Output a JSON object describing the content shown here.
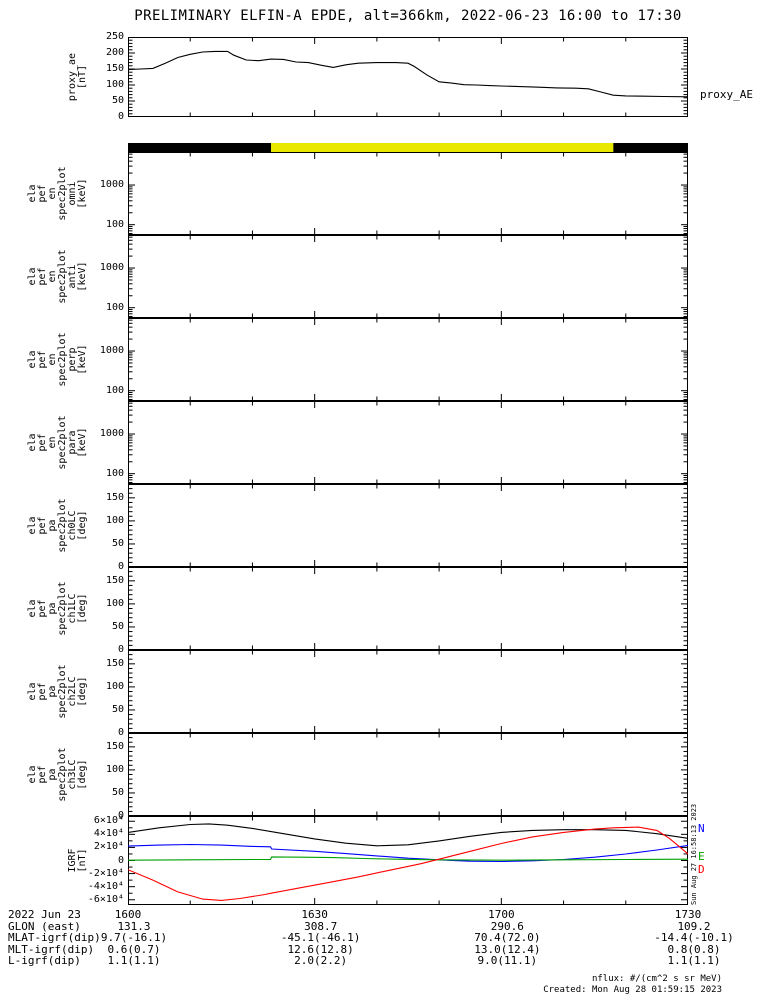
{
  "title": "PRELIMINARY ELFIN-A EPDE, alt=366km, 2022-06-23 16:00 to 17:30",
  "right_labels": {
    "proxy": "proxy_AE",
    "igrf": [
      {
        "label": "N",
        "color": "#0000ff"
      },
      {
        "label": "E",
        "color": "#00a000"
      },
      {
        "label": "D",
        "color": "#ff0000"
      }
    ]
  },
  "vertical_note": "Sun Aug 27 16:58:13 2023",
  "footer": {
    "nflux": "nflux: #/(cm^2 s sr MeV)",
    "created": "Created: Mon Aug 28 01:59:15 2023"
  },
  "xaxis": {
    "range_minutes": [
      0,
      90
    ],
    "major_minutes": [
      0,
      30,
      60,
      90
    ],
    "minor_minutes": [
      10,
      20,
      40,
      50,
      70,
      80
    ],
    "tick_labels": [
      "1600",
      "1630",
      "1700",
      "1730"
    ]
  },
  "panels": [
    {
      "id": "proxy_ae",
      "ylabel_lines": [
        "proxy_ae",
        "[nT]"
      ],
      "yscale": "linear",
      "yrange": [
        0,
        250
      ],
      "yticks": [
        0,
        50,
        100,
        150,
        200,
        250
      ],
      "ytick_labels": [
        "0",
        "50",
        "100",
        "150",
        "200",
        "250"
      ],
      "minor_step": 10
    },
    {
      "id": "en_spec_omni",
      "ylabel_lines": [
        "ela",
        "pef",
        "en",
        "spec2plot",
        "omni",
        "[keV]"
      ],
      "yscale": "log",
      "yrange": [
        55,
        6800
      ],
      "yticks": [
        100,
        1000
      ],
      "ytick_labels": [
        "100",
        "1000"
      ],
      "yticks_minor": [
        60,
        70,
        80,
        90,
        200,
        300,
        400,
        500,
        600,
        700,
        800,
        900,
        2000,
        3000,
        4000,
        5000,
        6000
      ]
    },
    {
      "id": "en_spec_anti",
      "ylabel_lines": [
        "ela",
        "pef",
        "en",
        "spec2plot",
        "anti",
        "[keV]"
      ],
      "yscale": "log",
      "yrange": [
        55,
        6800
      ],
      "yticks": [
        100,
        1000
      ],
      "ytick_labels": [
        "100",
        "1000"
      ],
      "yticks_minor": [
        60,
        70,
        80,
        90,
        200,
        300,
        400,
        500,
        600,
        700,
        800,
        900,
        2000,
        3000,
        4000,
        5000,
        6000
      ]
    },
    {
      "id": "en_spec_perp",
      "ylabel_lines": [
        "ela",
        "pef",
        "en",
        "spec2plot",
        "perp",
        "[keV]"
      ],
      "yscale": "log",
      "yrange": [
        55,
        6800
      ],
      "yticks": [
        100,
        1000
      ],
      "ytick_labels": [
        "100",
        "1000"
      ],
      "yticks_minor": [
        60,
        70,
        80,
        90,
        200,
        300,
        400,
        500,
        600,
        700,
        800,
        900,
        2000,
        3000,
        4000,
        5000,
        6000
      ]
    },
    {
      "id": "en_spec_para",
      "ylabel_lines": [
        "ela",
        "pef",
        "en",
        "spec2plot",
        "para",
        "[keV]"
      ],
      "yscale": "log",
      "yrange": [
        55,
        6800
      ],
      "yticks": [
        100,
        1000
      ],
      "ytick_labels": [
        "100",
        "1000"
      ],
      "yticks_minor": [
        60,
        70,
        80,
        90,
        200,
        300,
        400,
        500,
        600,
        700,
        800,
        900,
        2000,
        3000,
        4000,
        5000,
        6000
      ]
    },
    {
      "id": "pa_spec_ch0LC",
      "ylabel_lines": [
        "ela",
        "pef",
        "pa",
        "spec2plot",
        "ch0LC",
        "[deg]"
      ],
      "yscale": "linear",
      "yrange": [
        0,
        180
      ],
      "yticks": [
        0,
        50,
        100,
        150
      ],
      "ytick_labels": [
        "0",
        "50",
        "100",
        "150"
      ],
      "minor_step": 10
    },
    {
      "id": "pa_spec_ch1LC",
      "ylabel_lines": [
        "ela",
        "pef",
        "pa",
        "spec2plot",
        "ch1LC",
        "[deg]"
      ],
      "yscale": "linear",
      "yrange": [
        0,
        180
      ],
      "yticks": [
        0,
        50,
        100,
        150
      ],
      "ytick_labels": [
        "0",
        "50",
        "100",
        "150"
      ],
      "minor_step": 10
    },
    {
      "id": "pa_spec_ch2LC",
      "ylabel_lines": [
        "ela",
        "pef",
        "pa",
        "spec2plot",
        "ch2LC",
        "[deg]"
      ],
      "yscale": "linear",
      "yrange": [
        0,
        180
      ],
      "yticks": [
        0,
        50,
        100,
        150
      ],
      "ytick_labels": [
        "0",
        "50",
        "100",
        "150"
      ],
      "minor_step": 10
    },
    {
      "id": "pa_spec_ch3LC",
      "ylabel_lines": [
        "ela",
        "pef",
        "pa",
        "spec2plot",
        "ch3LC",
        "[deg]"
      ],
      "yscale": "linear",
      "yrange": [
        0,
        180
      ],
      "yticks": [
        0,
        50,
        100,
        150
      ],
      "ytick_labels": [
        "0",
        "50",
        "100",
        "150"
      ],
      "minor_step": 10
    },
    {
      "id": "igrf",
      "ylabel_lines": [
        "IGRF",
        "[nT]"
      ],
      "yscale": "linear",
      "yrange": [
        -68000,
        68000
      ],
      "yticks": [
        -60000,
        -40000,
        -20000,
        0,
        20000,
        40000,
        60000
      ],
      "ytick_labels": [
        "-6×10⁴",
        "-4×10⁴",
        "-2×10⁴",
        "0",
        "2×10⁴",
        "4×10⁴",
        "6×10⁴"
      ],
      "minor_step": 10000
    }
  ],
  "ephemeris": {
    "rows": [
      {
        "label": "2022 Jun 23",
        "values": [
          "1600",
          "1630",
          "1700",
          "1730"
        ]
      },
      {
        "label": "GLON (east)",
        "values": [
          "131.3",
          "308.7",
          "290.6",
          "109.2"
        ]
      },
      {
        "label": "MLAT-igrf(dip)",
        "values": [
          "9.7(-16.1)",
          "-45.1(-46.1)",
          "70.4(72.0)",
          "-14.4(-10.1)"
        ]
      },
      {
        "label": "MLT-igrf(dip)",
        "values": [
          "0.6(0.7)",
          "12.6(12.8)",
          "13.0(12.4)",
          "0.8(0.8)"
        ]
      },
      {
        "label": "L-igrf(dip)",
        "values": [
          "1.1(1.1)",
          "2.0(2.2)",
          "9.0(11.1)",
          "1.1(1.1)"
        ]
      }
    ]
  },
  "chart_data": [
    {
      "type": "line",
      "id": "proxy_ae",
      "title": "proxy_AE",
      "ylabel": "proxy_ae [nT]",
      "ylim": [
        0,
        250
      ],
      "color": "#000000",
      "x": [
        0,
        2,
        4,
        6,
        8,
        10,
        12,
        14,
        16,
        17,
        19,
        21,
        23,
        25,
        27,
        29,
        31,
        33,
        35,
        37,
        40,
        43,
        45,
        46,
        48,
        50,
        52,
        54,
        56,
        58,
        60,
        63,
        66,
        69,
        72,
        74,
        76,
        78,
        80,
        83,
        86,
        90
      ],
      "y": [
        148,
        150,
        152,
        168,
        186,
        196,
        203,
        205,
        205,
        193,
        178,
        176,
        181,
        180,
        172,
        170,
        162,
        155,
        163,
        168,
        170,
        170,
        168,
        158,
        132,
        110,
        106,
        101,
        100,
        98,
        97,
        95,
        93,
        91,
        90,
        88,
        78,
        68,
        66,
        65,
        64,
        63
      ]
    },
    {
      "type": "bar",
      "id": "sunlight_bar",
      "segments": [
        {
          "t0": 0,
          "t1": 23,
          "color": "#000000"
        },
        {
          "t0": 23,
          "t1": 78,
          "color": "#e8e800"
        },
        {
          "t0": 78,
          "t1": 90,
          "color": "#000000"
        }
      ]
    },
    {
      "type": "spectrogram",
      "id": "en_spec_omni",
      "title": "ela_pef_en_spec2plot_omni",
      "units": "keV",
      "ylim": [
        55,
        6800
      ],
      "values": [],
      "no_data_rendered": true
    },
    {
      "type": "spectrogram",
      "id": "en_spec_anti",
      "title": "ela_pef_en_spec2plot_anti",
      "units": "keV",
      "ylim": [
        55,
        6800
      ],
      "values": [],
      "no_data_rendered": true
    },
    {
      "type": "spectrogram",
      "id": "en_spec_perp",
      "title": "ela_pef_en_spec2plot_perp",
      "units": "keV",
      "ylim": [
        55,
        6800
      ],
      "values": [],
      "no_data_rendered": true
    },
    {
      "type": "spectrogram",
      "id": "en_spec_para",
      "title": "ela_pef_en_spec2plot_para",
      "units": "keV",
      "ylim": [
        55,
        6800
      ],
      "values": [],
      "no_data_rendered": true
    },
    {
      "type": "spectrogram",
      "id": "pa_spec_ch0LC",
      "title": "ela_pef_pa_spec2plot_ch0LC",
      "units": "deg",
      "ylim": [
        0,
        180
      ],
      "values": [],
      "no_data_rendered": true
    },
    {
      "type": "spectrogram",
      "id": "pa_spec_ch1LC",
      "title": "ela_pef_pa_spec2plot_ch1LC",
      "units": "deg",
      "ylim": [
        0,
        180
      ],
      "values": [],
      "no_data_rendered": true
    },
    {
      "type": "spectrogram",
      "id": "pa_spec_ch2LC",
      "title": "ela_pef_pa_spec2plot_ch2LC",
      "units": "deg",
      "ylim": [
        0,
        180
      ],
      "values": [],
      "no_data_rendered": true
    },
    {
      "type": "spectrogram",
      "id": "pa_spec_ch3LC",
      "title": "ela_pef_pa_spec2plot_ch3LC",
      "units": "deg",
      "ylim": [
        0,
        180
      ],
      "values": [],
      "no_data_rendered": true
    },
    {
      "type": "line",
      "id": "igrf",
      "title": "IGRF [nT]",
      "ylim": [
        -68000,
        68000
      ],
      "series": [
        {
          "name": "B",
          "color": "#000000",
          "x": [
            0,
            5,
            10,
            13,
            16,
            20,
            25,
            30,
            35,
            40,
            45,
            50,
            55,
            60,
            65,
            70,
            75,
            80,
            85,
            90
          ],
          "y": [
            43000,
            50000,
            55000,
            56000,
            54000,
            49000,
            41000,
            33000,
            26500,
            22500,
            24000,
            30000,
            37000,
            43000,
            46000,
            47000,
            47000,
            46000,
            41000,
            34000
          ]
        },
        {
          "name": "N",
          "color": "#0000ff",
          "x": [
            0,
            5,
            10,
            15,
            20,
            22.9,
            23.1,
            30,
            35,
            40,
            45,
            50,
            52,
            55,
            60,
            65,
            70,
            75,
            80,
            85,
            90
          ],
          "y": [
            22000,
            23500,
            24500,
            23500,
            21500,
            21000,
            17500,
            14000,
            10500,
            7000,
            3500,
            1000,
            0,
            -1000,
            -1500,
            -500,
            1500,
            5000,
            10000,
            16000,
            23000
          ]
        },
        {
          "name": "E",
          "color": "#00a000",
          "x": [
            0,
            10,
            20,
            22.9,
            23.1,
            28,
            33,
            38,
            43,
            50,
            60,
            70,
            80,
            90
          ],
          "y": [
            500,
            1000,
            1500,
            1500,
            5500,
            5000,
            4500,
            3000,
            2000,
            1000,
            500,
            1000,
            1500,
            2000
          ]
        },
        {
          "name": "D",
          "color": "#ff0000",
          "x": [
            0,
            4,
            8,
            12,
            15,
            18,
            22,
            23,
            27,
            32,
            37,
            42,
            47,
            50,
            55,
            60,
            65,
            70,
            75,
            78,
            82,
            85,
            87,
            89,
            90
          ],
          "y": [
            -14000,
            -30000,
            -48000,
            -59000,
            -61000,
            -58000,
            -52000,
            -50000,
            -43000,
            -34000,
            -25000,
            -15000,
            -5000,
            2000,
            14000,
            26000,
            36000,
            43000,
            48000,
            50000,
            51000,
            46000,
            34000,
            18000,
            10000
          ]
        }
      ]
    }
  ]
}
